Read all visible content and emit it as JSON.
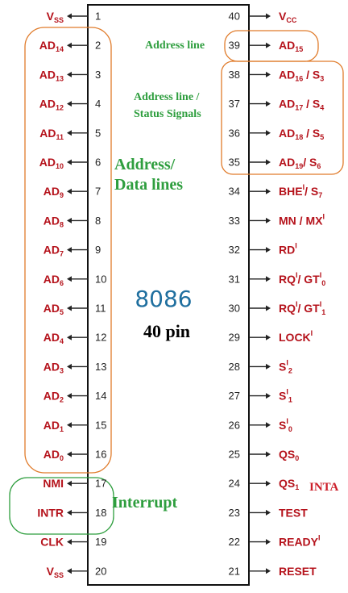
{
  "chip": {
    "title": "8086",
    "subtitle": "40 pin"
  },
  "left_pins": [
    {
      "num": "1",
      "name": "V",
      "sub": "SS",
      "sup": ""
    },
    {
      "num": "2",
      "name": "AD",
      "sub": "14",
      "sup": ""
    },
    {
      "num": "3",
      "name": "AD",
      "sub": "13",
      "sup": ""
    },
    {
      "num": "4",
      "name": "AD",
      "sub": "12",
      "sup": ""
    },
    {
      "num": "5",
      "name": "AD",
      "sub": "11",
      "sup": ""
    },
    {
      "num": "6",
      "name": "AD",
      "sub": "10",
      "sup": ""
    },
    {
      "num": "7",
      "name": "AD",
      "sub": "9",
      "sup": ""
    },
    {
      "num": "8",
      "name": "AD",
      "sub": "8",
      "sup": ""
    },
    {
      "num": "9",
      "name": "AD",
      "sub": "7",
      "sup": ""
    },
    {
      "num": "10",
      "name": "AD",
      "sub": "6",
      "sup": ""
    },
    {
      "num": "11",
      "name": "AD",
      "sub": "5",
      "sup": ""
    },
    {
      "num": "12",
      "name": "AD",
      "sub": "4",
      "sup": ""
    },
    {
      "num": "13",
      "name": "AD",
      "sub": "3",
      "sup": ""
    },
    {
      "num": "14",
      "name": "AD",
      "sub": "2",
      "sup": ""
    },
    {
      "num": "15",
      "name": "AD",
      "sub": "1",
      "sup": ""
    },
    {
      "num": "16",
      "name": "AD",
      "sub": "0",
      "sup": ""
    },
    {
      "num": "17",
      "name": "NMI",
      "sub": "",
      "sup": ""
    },
    {
      "num": "18",
      "name": "INTR",
      "sub": "",
      "sup": ""
    },
    {
      "num": "19",
      "name": "CLK",
      "sub": "",
      "sup": ""
    },
    {
      "num": "20",
      "name": "V",
      "sub": "SS",
      "sup": ""
    }
  ],
  "right_pins": [
    {
      "num": "40",
      "parts": [
        {
          "t": "V"
        },
        {
          "t": "CC",
          "k": "sub"
        }
      ]
    },
    {
      "num": "39",
      "parts": [
        {
          "t": "AD"
        },
        {
          "t": "15",
          "k": "sub"
        }
      ]
    },
    {
      "num": "38",
      "parts": [
        {
          "t": "AD"
        },
        {
          "t": "16",
          "k": "sub"
        },
        {
          "t": " / S"
        },
        {
          "t": "3",
          "k": "sub"
        }
      ]
    },
    {
      "num": "37",
      "parts": [
        {
          "t": "AD"
        },
        {
          "t": "17",
          "k": "sub"
        },
        {
          "t": " / S"
        },
        {
          "t": "4",
          "k": "sub"
        }
      ]
    },
    {
      "num": "36",
      "parts": [
        {
          "t": "AD"
        },
        {
          "t": "18",
          "k": "sub"
        },
        {
          "t": " / S"
        },
        {
          "t": "5",
          "k": "sub"
        }
      ]
    },
    {
      "num": "35",
      "parts": [
        {
          "t": "AD"
        },
        {
          "t": "19",
          "k": "sub"
        },
        {
          "t": "/ S"
        },
        {
          "t": "6",
          "k": "sub"
        }
      ]
    },
    {
      "num": "34",
      "parts": [
        {
          "t": "BHE"
        },
        {
          "t": "I",
          "k": "sup"
        },
        {
          "t": "/ S"
        },
        {
          "t": "7",
          "k": "sub"
        }
      ]
    },
    {
      "num": "33",
      "parts": [
        {
          "t": "MN / MX"
        },
        {
          "t": "I",
          "k": "sup"
        }
      ]
    },
    {
      "num": "32",
      "parts": [
        {
          "t": "RD"
        },
        {
          "t": "I",
          "k": "sup"
        }
      ]
    },
    {
      "num": "31",
      "parts": [
        {
          "t": "RQ"
        },
        {
          "t": "I",
          "k": "sup"
        },
        {
          "t": "/ GT"
        },
        {
          "t": "I",
          "k": "sup"
        },
        {
          "t": "0",
          "k": "sub"
        }
      ]
    },
    {
      "num": "30",
      "parts": [
        {
          "t": "RQ"
        },
        {
          "t": "I",
          "k": "sup"
        },
        {
          "t": "/ GT"
        },
        {
          "t": "I",
          "k": "sup"
        },
        {
          "t": "1",
          "k": "sub"
        }
      ]
    },
    {
      "num": "29",
      "parts": [
        {
          "t": "LOCK"
        },
        {
          "t": "I",
          "k": "sup"
        }
      ]
    },
    {
      "num": "28",
      "parts": [
        {
          "t": "S"
        },
        {
          "t": "I",
          "k": "sup"
        },
        {
          "t": "2",
          "k": "sub"
        }
      ]
    },
    {
      "num": "27",
      "parts": [
        {
          "t": "S"
        },
        {
          "t": "I",
          "k": "sup"
        },
        {
          "t": "1",
          "k": "sub"
        }
      ]
    },
    {
      "num": "26",
      "parts": [
        {
          "t": "S"
        },
        {
          "t": "I",
          "k": "sup"
        },
        {
          "t": "0",
          "k": "sub"
        }
      ]
    },
    {
      "num": "25",
      "parts": [
        {
          "t": "QS"
        },
        {
          "t": "0",
          "k": "sub"
        }
      ]
    },
    {
      "num": "24",
      "parts": [
        {
          "t": "QS"
        },
        {
          "t": "1",
          "k": "sub"
        }
      ]
    },
    {
      "num": "23",
      "parts": [
        {
          "t": "TEST"
        }
      ]
    },
    {
      "num": "22",
      "parts": [
        {
          "t": "READY"
        },
        {
          "t": "I",
          "k": "sup"
        }
      ]
    },
    {
      "num": "21",
      "parts": [
        {
          "t": "RESET"
        }
      ]
    }
  ],
  "annotations": {
    "address_line": "Address line",
    "address_status_1": "Address line /",
    "address_status_2": "Status Signals",
    "address_data_1": "Address/",
    "address_data_2": "Data lines",
    "interrupt": "Interrupt",
    "inta": "INTA"
  },
  "colors": {
    "pin_label": "#b5121b",
    "annotation": "#2e9e3e",
    "bracket": "#e07b2a",
    "interrupt_bracket": "#2e9e3e",
    "chip_title": "#1f6f9f"
  }
}
